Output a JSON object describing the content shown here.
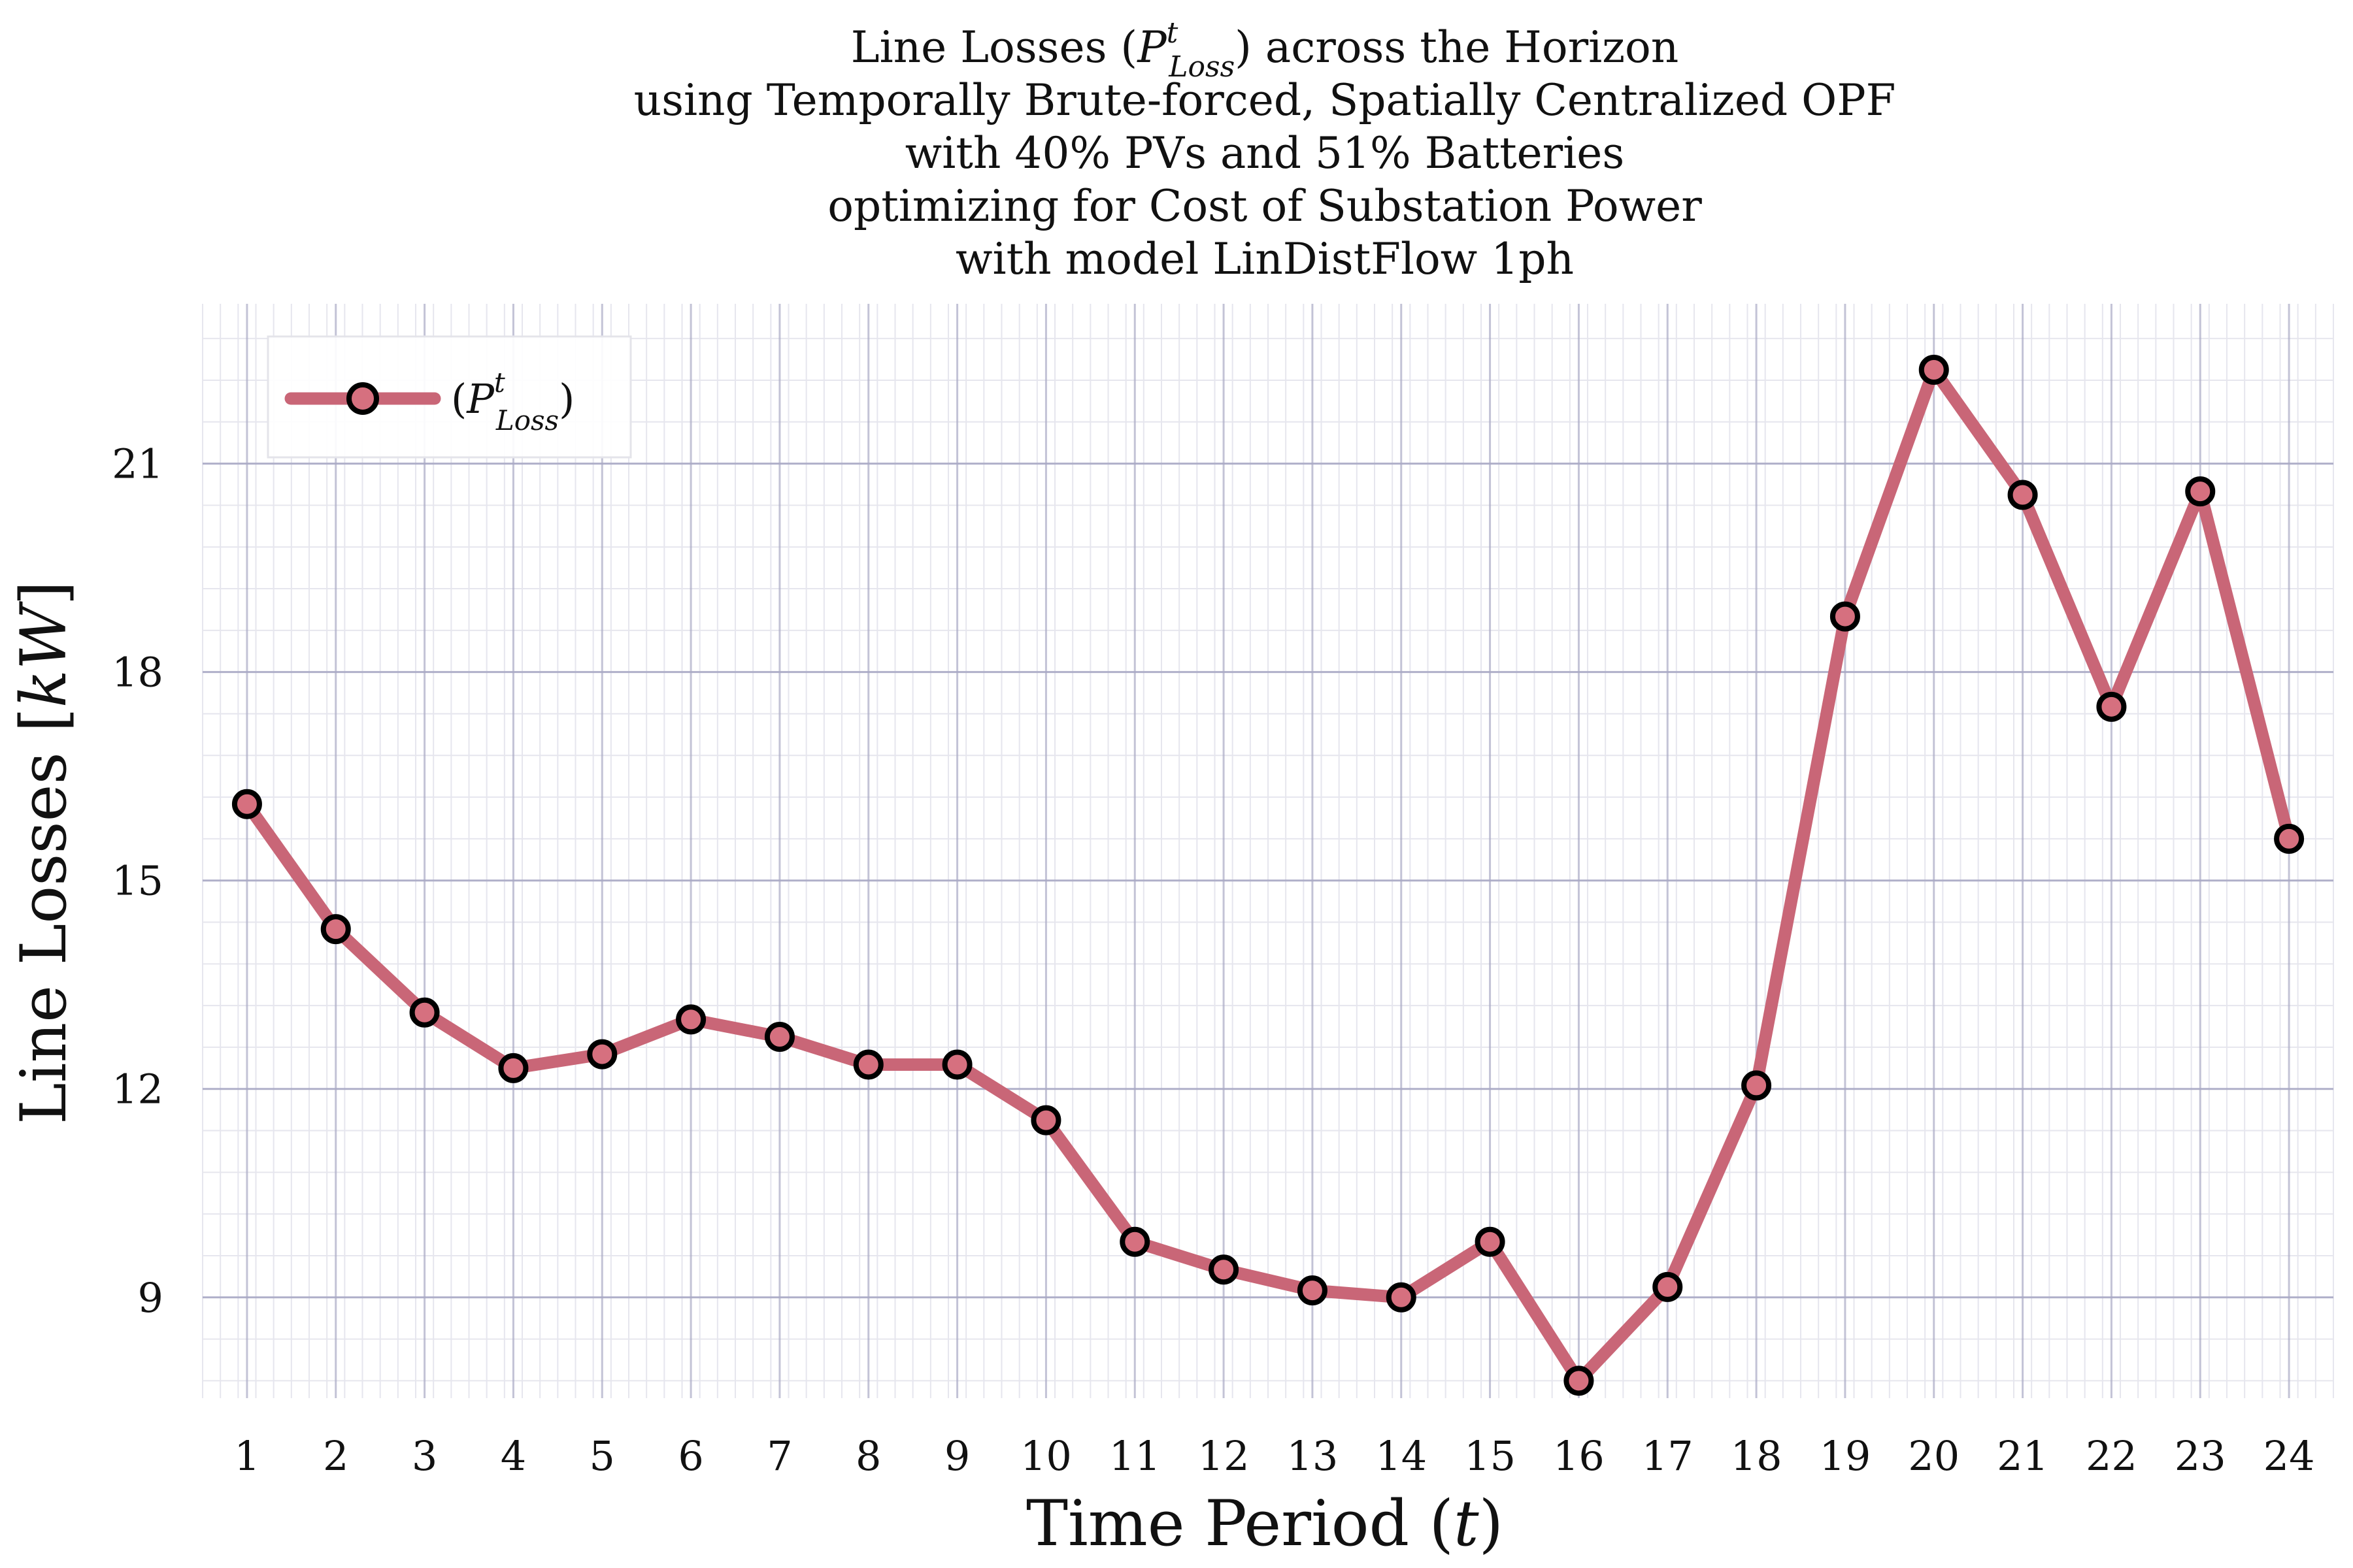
{
  "chart_data": {
    "type": "line",
    "title_lines": [
      "Line Losses (P^t_Loss) across the Horizon",
      "using Temporally Brute-forced, Spatially Centralized OPF",
      "with 40% PVs and 51% Batteries",
      "optimizing for Cost of Substation Power",
      "with model LinDistFlow 1ph"
    ],
    "title_parts": {
      "line1_prefix": "Line Losses (",
      "line1_suffix": ") across the Horizon"
    },
    "xlabel": "Time Period",
    "ylabel": "Line Losses",
    "ylabel_unit": "kW",
    "x": [
      1,
      2,
      3,
      4,
      5,
      6,
      7,
      8,
      9,
      10,
      11,
      12,
      13,
      14,
      15,
      16,
      17,
      18,
      19,
      20,
      21,
      22,
      23,
      24
    ],
    "series": [
      {
        "name": "(P^t_Loss)",
        "color": "#c96677",
        "marker_edge": "#000000",
        "marker_fill": "#d6707f",
        "values": [
          16.1,
          14.3,
          13.1,
          12.3,
          12.5,
          13.0,
          12.75,
          12.35,
          12.35,
          11.55,
          9.8,
          9.4,
          9.1,
          9.0,
          9.8,
          7.8,
          9.15,
          12.05,
          18.8,
          22.35,
          20.55,
          17.5,
          20.6,
          15.6
        ]
      }
    ],
    "xlim": [
      0.5,
      24.5
    ],
    "ylim": [
      7.55,
      23.3
    ],
    "y_ticks": [
      9,
      12,
      15,
      18,
      21
    ],
    "x_ticks": [
      1,
      2,
      3,
      4,
      5,
      6,
      7,
      8,
      9,
      10,
      11,
      12,
      13,
      14,
      15,
      16,
      17,
      18,
      19,
      20,
      21,
      22,
      23,
      24
    ],
    "grid": true,
    "minor_grid": true,
    "legend_position": "top-left",
    "grid_color": "#a9a9c4",
    "minor_grid_color": "#e6e6ee"
  }
}
